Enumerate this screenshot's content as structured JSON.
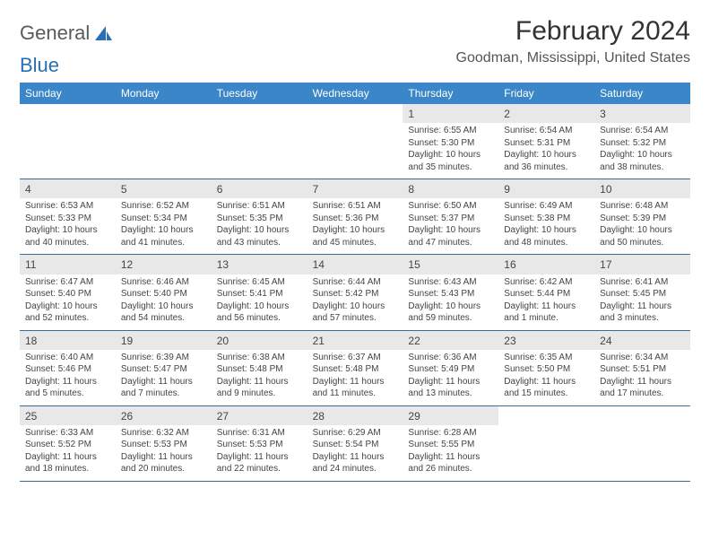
{
  "brand": {
    "word1": "General",
    "word2": "Blue"
  },
  "title": "February 2024",
  "location": "Goodman, Mississippi, United States",
  "colors": {
    "header_bg": "#3a86c8",
    "header_fg": "#ffffff",
    "daynum_bg": "#e8e8e8",
    "week_border": "#3a6a9a",
    "brand_blue": "#2a6fb5"
  },
  "day_names": [
    "Sunday",
    "Monday",
    "Tuesday",
    "Wednesday",
    "Thursday",
    "Friday",
    "Saturday"
  ],
  "weeks": [
    [
      {
        "day": "",
        "sunrise": "",
        "sunset": "",
        "daylight": ""
      },
      {
        "day": "",
        "sunrise": "",
        "sunset": "",
        "daylight": ""
      },
      {
        "day": "",
        "sunrise": "",
        "sunset": "",
        "daylight": ""
      },
      {
        "day": "",
        "sunrise": "",
        "sunset": "",
        "daylight": ""
      },
      {
        "day": "1",
        "sunrise": "Sunrise: 6:55 AM",
        "sunset": "Sunset: 5:30 PM",
        "daylight": "Daylight: 10 hours and 35 minutes."
      },
      {
        "day": "2",
        "sunrise": "Sunrise: 6:54 AM",
        "sunset": "Sunset: 5:31 PM",
        "daylight": "Daylight: 10 hours and 36 minutes."
      },
      {
        "day": "3",
        "sunrise": "Sunrise: 6:54 AM",
        "sunset": "Sunset: 5:32 PM",
        "daylight": "Daylight: 10 hours and 38 minutes."
      }
    ],
    [
      {
        "day": "4",
        "sunrise": "Sunrise: 6:53 AM",
        "sunset": "Sunset: 5:33 PM",
        "daylight": "Daylight: 10 hours and 40 minutes."
      },
      {
        "day": "5",
        "sunrise": "Sunrise: 6:52 AM",
        "sunset": "Sunset: 5:34 PM",
        "daylight": "Daylight: 10 hours and 41 minutes."
      },
      {
        "day": "6",
        "sunrise": "Sunrise: 6:51 AM",
        "sunset": "Sunset: 5:35 PM",
        "daylight": "Daylight: 10 hours and 43 minutes."
      },
      {
        "day": "7",
        "sunrise": "Sunrise: 6:51 AM",
        "sunset": "Sunset: 5:36 PM",
        "daylight": "Daylight: 10 hours and 45 minutes."
      },
      {
        "day": "8",
        "sunrise": "Sunrise: 6:50 AM",
        "sunset": "Sunset: 5:37 PM",
        "daylight": "Daylight: 10 hours and 47 minutes."
      },
      {
        "day": "9",
        "sunrise": "Sunrise: 6:49 AM",
        "sunset": "Sunset: 5:38 PM",
        "daylight": "Daylight: 10 hours and 48 minutes."
      },
      {
        "day": "10",
        "sunrise": "Sunrise: 6:48 AM",
        "sunset": "Sunset: 5:39 PM",
        "daylight": "Daylight: 10 hours and 50 minutes."
      }
    ],
    [
      {
        "day": "11",
        "sunrise": "Sunrise: 6:47 AM",
        "sunset": "Sunset: 5:40 PM",
        "daylight": "Daylight: 10 hours and 52 minutes."
      },
      {
        "day": "12",
        "sunrise": "Sunrise: 6:46 AM",
        "sunset": "Sunset: 5:40 PM",
        "daylight": "Daylight: 10 hours and 54 minutes."
      },
      {
        "day": "13",
        "sunrise": "Sunrise: 6:45 AM",
        "sunset": "Sunset: 5:41 PM",
        "daylight": "Daylight: 10 hours and 56 minutes."
      },
      {
        "day": "14",
        "sunrise": "Sunrise: 6:44 AM",
        "sunset": "Sunset: 5:42 PM",
        "daylight": "Daylight: 10 hours and 57 minutes."
      },
      {
        "day": "15",
        "sunrise": "Sunrise: 6:43 AM",
        "sunset": "Sunset: 5:43 PM",
        "daylight": "Daylight: 10 hours and 59 minutes."
      },
      {
        "day": "16",
        "sunrise": "Sunrise: 6:42 AM",
        "sunset": "Sunset: 5:44 PM",
        "daylight": "Daylight: 11 hours and 1 minute."
      },
      {
        "day": "17",
        "sunrise": "Sunrise: 6:41 AM",
        "sunset": "Sunset: 5:45 PM",
        "daylight": "Daylight: 11 hours and 3 minutes."
      }
    ],
    [
      {
        "day": "18",
        "sunrise": "Sunrise: 6:40 AM",
        "sunset": "Sunset: 5:46 PM",
        "daylight": "Daylight: 11 hours and 5 minutes."
      },
      {
        "day": "19",
        "sunrise": "Sunrise: 6:39 AM",
        "sunset": "Sunset: 5:47 PM",
        "daylight": "Daylight: 11 hours and 7 minutes."
      },
      {
        "day": "20",
        "sunrise": "Sunrise: 6:38 AM",
        "sunset": "Sunset: 5:48 PM",
        "daylight": "Daylight: 11 hours and 9 minutes."
      },
      {
        "day": "21",
        "sunrise": "Sunrise: 6:37 AM",
        "sunset": "Sunset: 5:48 PM",
        "daylight": "Daylight: 11 hours and 11 minutes."
      },
      {
        "day": "22",
        "sunrise": "Sunrise: 6:36 AM",
        "sunset": "Sunset: 5:49 PM",
        "daylight": "Daylight: 11 hours and 13 minutes."
      },
      {
        "day": "23",
        "sunrise": "Sunrise: 6:35 AM",
        "sunset": "Sunset: 5:50 PM",
        "daylight": "Daylight: 11 hours and 15 minutes."
      },
      {
        "day": "24",
        "sunrise": "Sunrise: 6:34 AM",
        "sunset": "Sunset: 5:51 PM",
        "daylight": "Daylight: 11 hours and 17 minutes."
      }
    ],
    [
      {
        "day": "25",
        "sunrise": "Sunrise: 6:33 AM",
        "sunset": "Sunset: 5:52 PM",
        "daylight": "Daylight: 11 hours and 18 minutes."
      },
      {
        "day": "26",
        "sunrise": "Sunrise: 6:32 AM",
        "sunset": "Sunset: 5:53 PM",
        "daylight": "Daylight: 11 hours and 20 minutes."
      },
      {
        "day": "27",
        "sunrise": "Sunrise: 6:31 AM",
        "sunset": "Sunset: 5:53 PM",
        "daylight": "Daylight: 11 hours and 22 minutes."
      },
      {
        "day": "28",
        "sunrise": "Sunrise: 6:29 AM",
        "sunset": "Sunset: 5:54 PM",
        "daylight": "Daylight: 11 hours and 24 minutes."
      },
      {
        "day": "29",
        "sunrise": "Sunrise: 6:28 AM",
        "sunset": "Sunset: 5:55 PM",
        "daylight": "Daylight: 11 hours and 26 minutes."
      },
      {
        "day": "",
        "sunrise": "",
        "sunset": "",
        "daylight": ""
      },
      {
        "day": "",
        "sunrise": "",
        "sunset": "",
        "daylight": ""
      }
    ]
  ]
}
